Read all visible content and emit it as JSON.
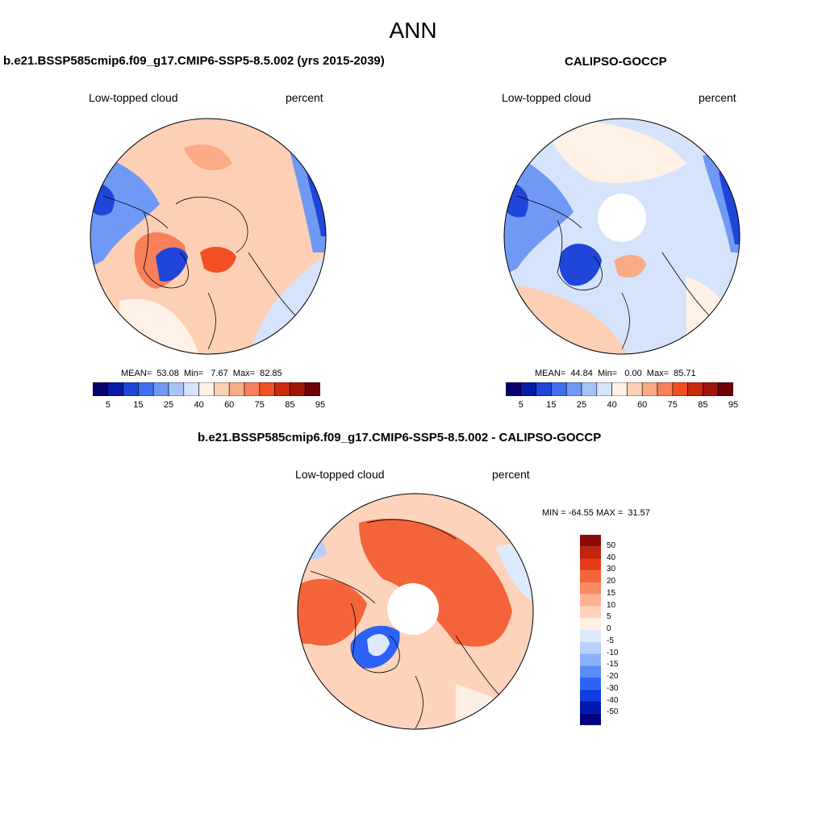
{
  "title": "ANN",
  "panels": [
    {
      "title": "b.e21.BSSP585cmip6.f09_g17.CMIP6-SSP5-8.5.002 (yrs 2015-2039)",
      "left_label": "Low-topped cloud",
      "right_label": "percent",
      "stats": "MEAN=  53.08  Min=   7.67  Max=  82.85"
    },
    {
      "title": "CALIPSO-GOCCP",
      "left_label": "Low-topped cloud",
      "right_label": "percent",
      "stats": "MEAN=  44.84  Min=   0.00  Max=  85.71"
    },
    {
      "title": "b.e21.BSSP585cmip6.f09_g17.CMIP6-SSP5-8.5.002 - CALIPSO-GOCCP",
      "left_label": "Low-topped cloud",
      "right_label": "percent",
      "stats": "MIN = -64.55 MAX =  31.57"
    }
  ],
  "colorbar_abs": {
    "colors": [
      "#08006e",
      "#0a1aa8",
      "#1f45d9",
      "#3f6ff0",
      "#6f99f5",
      "#a6c3f9",
      "#d5e4fb",
      "#fff1e6",
      "#fdd0b5",
      "#fbaa86",
      "#f7805a",
      "#f24f25",
      "#cc2a0a",
      "#a1150a",
      "#6e0008"
    ],
    "tick_labels": [
      "5",
      "15",
      "25",
      "40",
      "60",
      "75",
      "85",
      "95"
    ]
  },
  "colorbar_diff": {
    "colors": [
      "#000080",
      "#0018b0",
      "#0f3ee0",
      "#2d63f5",
      "#5a8cf8",
      "#8cb1fa",
      "#b9d0fb",
      "#ddeafc",
      "#feefe4",
      "#fed3bb",
      "#fcb294",
      "#fa8a64",
      "#f4643a",
      "#e63b16",
      "#c0240a",
      "#8c0a04"
    ],
    "tick_labels": [
      "50",
      "40",
      "30",
      "20",
      "15",
      "10",
      "5",
      "0",
      "-5",
      "-10",
      "-15",
      "-20",
      "-30",
      "-40",
      "-50"
    ]
  },
  "map_colors": {
    "deep_blue": "#1f45d9",
    "mid_blue": "#6f99f5",
    "light_blue": "#d5e4fb",
    "cream": "#fff1e6",
    "light_orange": "#fdd0b5",
    "orange": "#fbaa86",
    "red": "#f24f25"
  }
}
